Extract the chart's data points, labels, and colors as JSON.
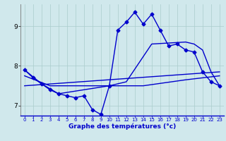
{
  "xlabel": "Graphe des températures (°c)",
  "background_color": "#d0e8ec",
  "grid_color": "#aacccc",
  "line_color": "#0000cc",
  "ylim": [
    6.75,
    9.55
  ],
  "xlim": [
    -0.5,
    23.5
  ],
  "yticks": [
    7,
    8,
    9
  ],
  "xticks": [
    0,
    1,
    2,
    3,
    4,
    5,
    6,
    7,
    8,
    9,
    10,
    11,
    12,
    13,
    14,
    15,
    16,
    17,
    18,
    19,
    20,
    21,
    22,
    23
  ],
  "series": [
    {
      "x": [
        0,
        1,
        2,
        3,
        4,
        5,
        6,
        7,
        8,
        9,
        10,
        11,
        12,
        13,
        14,
        15,
        16,
        17,
        18,
        19,
        20,
        21,
        22,
        23
      ],
      "y": [
        7.9,
        7.7,
        7.55,
        7.4,
        7.3,
        7.25,
        7.2,
        7.25,
        6.9,
        6.78,
        7.5,
        8.9,
        9.1,
        9.35,
        9.05,
        9.3,
        8.9,
        8.5,
        8.55,
        8.4,
        8.35,
        7.85,
        7.6,
        7.5
      ],
      "marker": "D",
      "markersize": 2.5,
      "linewidth": 1.0,
      "zorder": 3
    },
    {
      "x": [
        0,
        3,
        10,
        14,
        19,
        23
      ],
      "y": [
        7.75,
        7.5,
        7.5,
        7.5,
        7.65,
        7.75
      ],
      "marker": null,
      "linewidth": 1.0,
      "zorder": 2
    },
    {
      "x": [
        0,
        23
      ],
      "y": [
        7.5,
        7.85
      ],
      "marker": null,
      "linewidth": 1.0,
      "zorder": 2
    },
    {
      "x": [
        0,
        2,
        4,
        10,
        12,
        15,
        19,
        20,
        21,
        22,
        23
      ],
      "y": [
        7.9,
        7.55,
        7.3,
        7.5,
        7.6,
        8.55,
        8.6,
        8.55,
        8.4,
        7.85,
        7.5
      ],
      "marker": null,
      "linewidth": 1.0,
      "zorder": 2
    }
  ]
}
